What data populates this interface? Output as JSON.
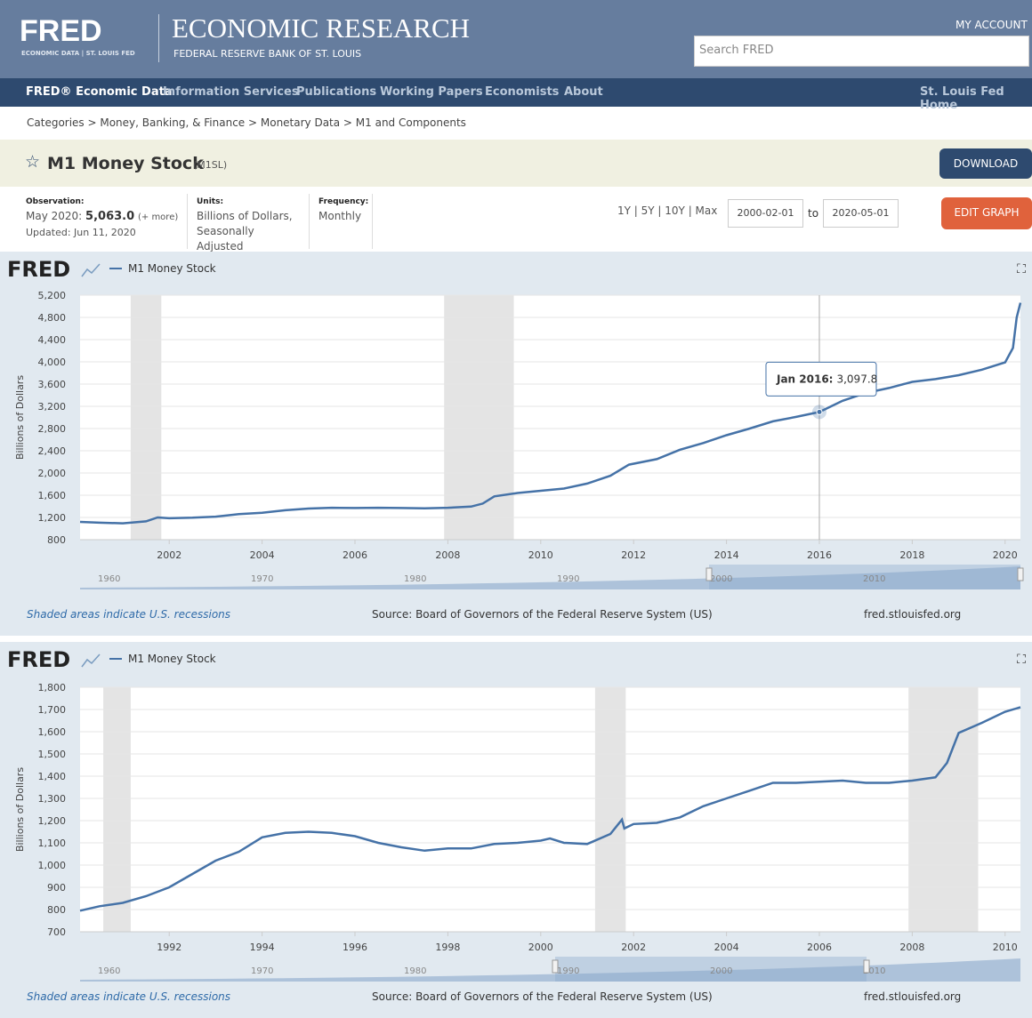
{
  "header": {
    "logo": "FRED",
    "logo_sub": "ECONOMIC DATA | ST. LOUIS FED",
    "title": "ECONOMIC RESEARCH",
    "subtitle": "FEDERAL RESERVE BANK OF ST. LOUIS",
    "account": "MY ACCOUNT",
    "search": "Search FRED"
  },
  "nav": {
    "items": [
      "FRED® Economic Data",
      "Information Services",
      "Publications",
      "Working Papers",
      "Economists",
      "About"
    ],
    "right": "St. Louis Fed Home"
  },
  "breadcrumb": "Categories > Money, Banking, & Finance > Monetary Data > M1 and Components",
  "series_title": {
    "name": "M1 Money Stock",
    "id": "(M1SL)",
    "download": "DOWNLOAD"
  },
  "info": {
    "obs_label": "Observation:",
    "obs_date": "May 2020:",
    "obs_value": "5,063.0",
    "obs_more": "(+ more)",
    "updated": "Updated: Jun 11, 2020",
    "units_label": "Units:",
    "units": "Billions of Dollars, Seasonally Adjusted",
    "freq_label": "Frequency:",
    "freq": "Monthly"
  },
  "controls": {
    "ranges": "1Y | 5Y | 10Y | Max",
    "start": "2000-02-01",
    "to": "to",
    "end": "2020-05-01",
    "edit": "EDIT GRAPH"
  },
  "chart_data": [
    {
      "type": "line",
      "logo": "FRED",
      "y_label": "Billions of Dollars",
      "x": [
        2000.08,
        2000.5,
        2001.0,
        2001.5,
        2001.75,
        2002.0,
        2002.5,
        2003.0,
        2003.5,
        2004.0,
        2004.5,
        2005.0,
        2005.5,
        2006.0,
        2006.5,
        2007.0,
        2007.5,
        2008.0,
        2008.5,
        2008.75,
        2009.0,
        2009.5,
        2010.0,
        2010.5,
        2011.0,
        2011.5,
        2011.9,
        2012.5,
        2013.0,
        2013.5,
        2014.0,
        2014.5,
        2015.0,
        2015.5,
        2016.0,
        2016.5,
        2017.0,
        2017.5,
        2018.0,
        2018.5,
        2019.0,
        2019.5,
        2020.0,
        2020.17,
        2020.25,
        2020.33
      ],
      "series": [
        {
          "name": "M1 Money Stock",
          "color": "#4572a7",
          "values": [
            1120,
            1105,
            1095,
            1130,
            1200,
            1185,
            1195,
            1215,
            1260,
            1285,
            1330,
            1360,
            1375,
            1370,
            1375,
            1370,
            1365,
            1375,
            1395,
            1450,
            1580,
            1640,
            1680,
            1720,
            1810,
            1950,
            2150,
            2250,
            2420,
            2540,
            2680,
            2800,
            2930,
            3010,
            3097.8,
            3300,
            3440,
            3530,
            3640,
            3690,
            3760,
            3860,
            3990,
            4250,
            4800,
            5063.0
          ]
        }
      ],
      "xlim": [
        2000.08,
        2020.33
      ],
      "xticks": [
        2002,
        2004,
        2006,
        2008,
        2010,
        2012,
        2014,
        2016,
        2018,
        2020
      ],
      "ylim": [
        800,
        5200
      ],
      "yticks": [
        800,
        {
          "value": 1200,
          "label": "1,200"
        },
        {
          "value": 1600,
          "label": "1,600"
        },
        {
          "value": 2000,
          "label": "2,000"
        },
        {
          "value": 2400,
          "label": "2,400"
        },
        {
          "value": 2800,
          "label": "2,800"
        },
        {
          "value": 3200,
          "label": "3,200"
        },
        {
          "value": 3600,
          "label": "3,600"
        },
        {
          "value": 4000,
          "label": "4,000"
        },
        {
          "value": 4400,
          "label": "4,400"
        },
        {
          "value": 4800,
          "label": "4,800"
        },
        {
          "value": 5200,
          "label": "5,200"
        }
      ],
      "grid": true,
      "recessions": [
        [
          2001.17,
          2001.83
        ],
        [
          2007.92,
          2009.42
        ]
      ],
      "annotation": {
        "label": "Jan 2016:",
        "value_label": "3,097.8",
        "x": 2016.0,
        "value": 3097.8
      },
      "navigator_labels": [
        "1960",
        "1970",
        "1980",
        "1990",
        "2000",
        "2010"
      ],
      "note": "Shaded areas indicate U.S. recessions",
      "source": "Source: Board of Governors of the Federal Reserve System (US)",
      "site": "fred.stlouisfed.org"
    },
    {
      "type": "line",
      "logo": "FRED",
      "y_label": "Billions of Dollars",
      "x": [
        1990.08,
        1990.5,
        1991.0,
        1991.5,
        1992.0,
        1992.5,
        1993.0,
        1993.5,
        1994.0,
        1994.5,
        1995.0,
        1995.5,
        1996.0,
        1996.5,
        1997.0,
        1997.5,
        1998.0,
        1998.5,
        1999.0,
        1999.5,
        2000.0,
        2000.2,
        2000.5,
        2001.0,
        2001.5,
        2001.75,
        2001.8,
        2002.0,
        2002.5,
        2003.0,
        2003.5,
        2004.0,
        2004.5,
        2005.0,
        2005.5,
        2006.0,
        2006.5,
        2007.0,
        2007.5,
        2008.0,
        2008.5,
        2008.75,
        2009.0,
        2009.5,
        2010.0,
        2010.33
      ],
      "series": [
        {
          "name": "M1 Money Stock",
          "color": "#4572a7",
          "values": [
            795,
            815,
            830,
            860,
            900,
            960,
            1020,
            1060,
            1125,
            1145,
            1150,
            1145,
            1130,
            1100,
            1080,
            1065,
            1075,
            1075,
            1095,
            1100,
            1110,
            1120,
            1100,
            1095,
            1140,
            1205,
            1165,
            1185,
            1190,
            1215,
            1265,
            1300,
            1335,
            1370,
            1370,
            1375,
            1380,
            1370,
            1370,
            1380,
            1395,
            1460,
            1595,
            1640,
            1690,
            1710
          ]
        }
      ],
      "xlim": [
        1990.08,
        2010.33
      ],
      "xticks": [
        1992,
        1994,
        1996,
        1998,
        2000,
        2002,
        2004,
        2006,
        2008,
        2010
      ],
      "ylim": [
        700,
        1800
      ],
      "yticks": [
        700,
        800,
        900,
        {
          "value": 1000,
          "label": "1,000"
        },
        {
          "value": 1100,
          "label": "1,100"
        },
        {
          "value": 1200,
          "label": "1,200"
        },
        {
          "value": 1300,
          "label": "1,300"
        },
        {
          "value": 1400,
          "label": "1,400"
        },
        {
          "value": 1500,
          "label": "1,500"
        },
        {
          "value": 1600,
          "label": "1,600"
        },
        {
          "value": 1700,
          "label": "1,700"
        },
        {
          "value": 1800,
          "label": "1,800"
        }
      ],
      "grid": true,
      "recessions": [
        [
          1990.58,
          1991.17
        ],
        [
          2001.17,
          2001.83
        ],
        [
          2007.92,
          2009.42
        ]
      ],
      "navigator_labels": [
        "1960",
        "1970",
        "1980",
        "1990",
        "2000",
        "2010"
      ],
      "note": "Shaded areas indicate U.S. recessions",
      "source": "Source: Board of Governors of the Federal Reserve System (US)",
      "site": "fred.stlouisfed.org"
    }
  ]
}
